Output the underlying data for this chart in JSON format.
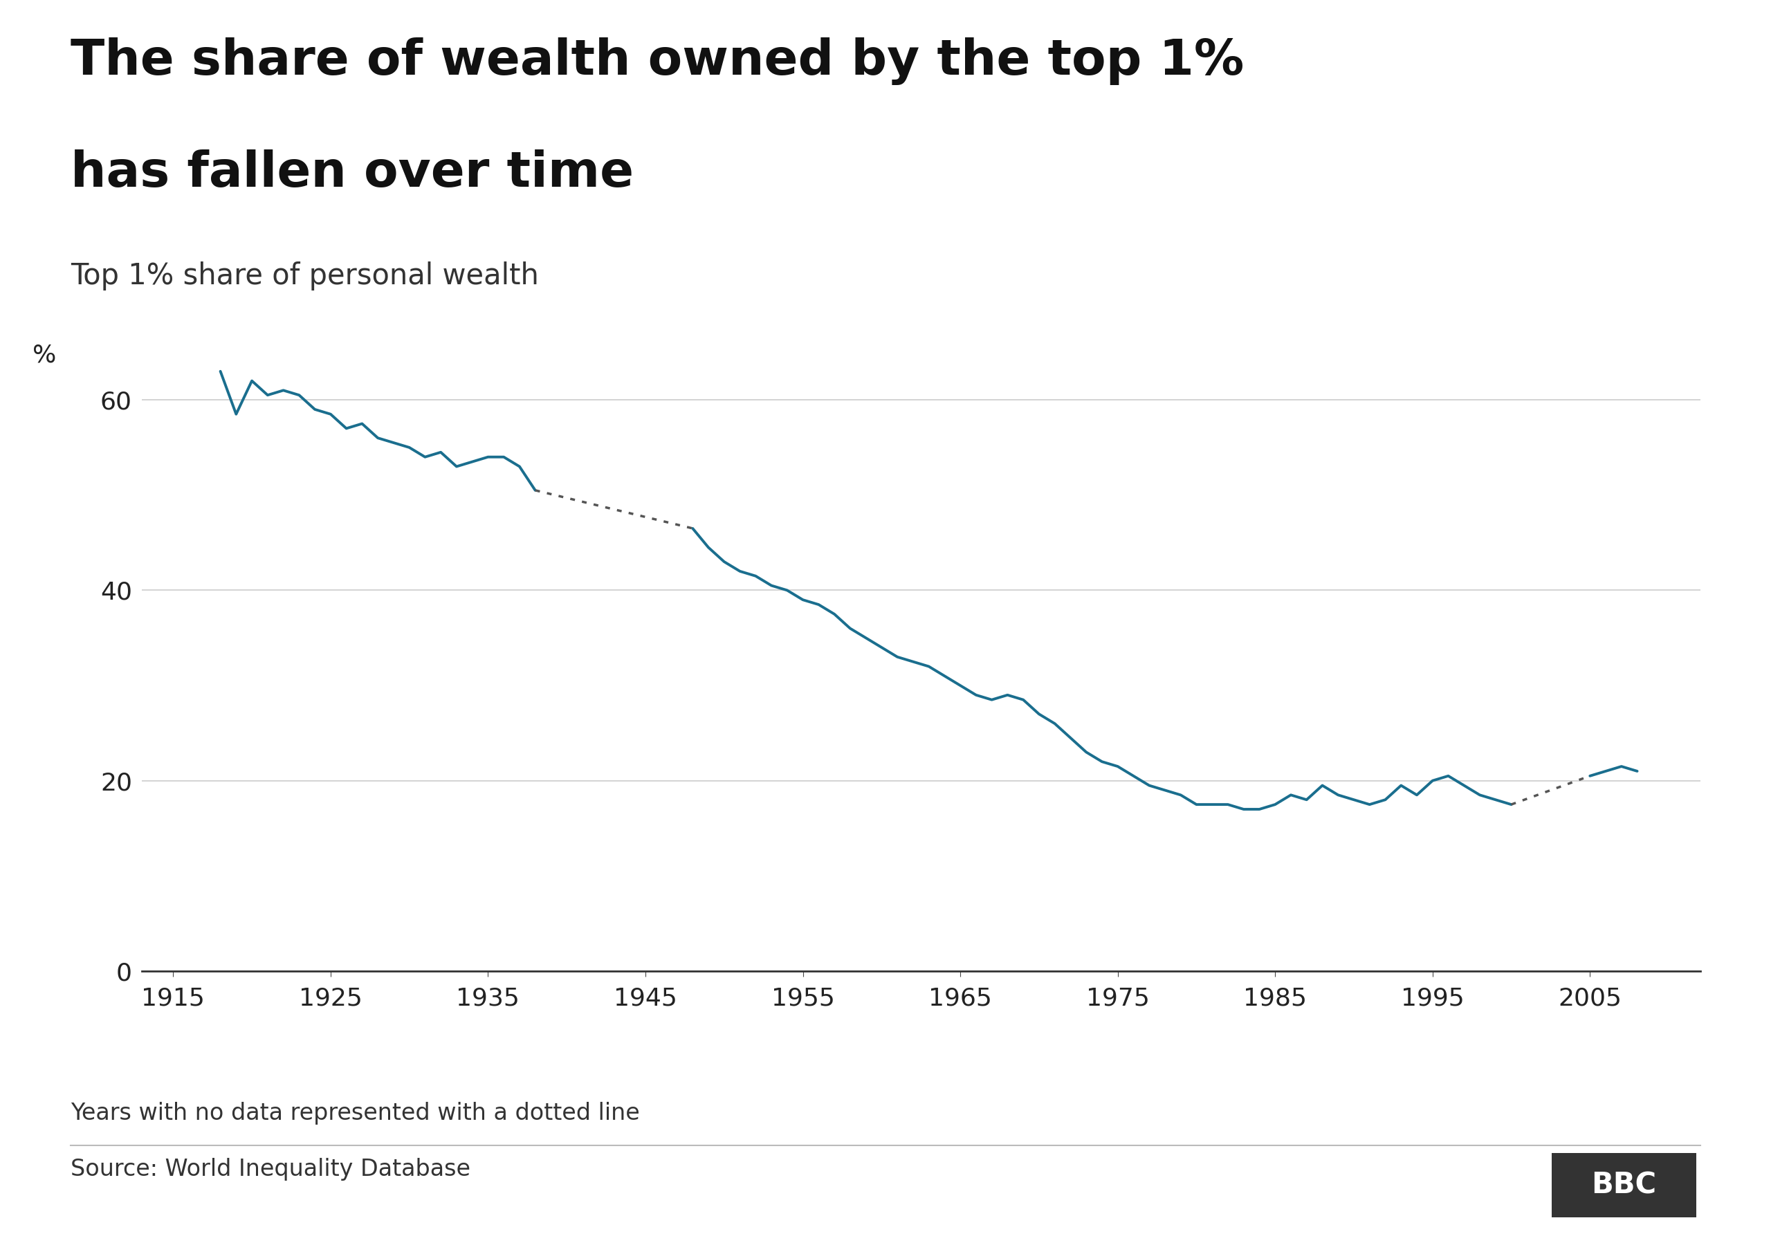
{
  "title_line1": "The share of wealth owned by the top 1%",
  "title_line2": "has fallen over time",
  "subtitle": "Top 1% share of personal wealth",
  "ylabel": "%",
  "source_text": "Source: World Inequality Database",
  "footnote": "Years with no data represented with a dotted line",
  "line_color": "#1a6e8e",
  "dotted_color": "#555555",
  "background_color": "#ffffff",
  "xlim": [
    1913,
    2012
  ],
  "ylim": [
    0,
    68
  ],
  "yticks": [
    0,
    20,
    40,
    60
  ],
  "xticks": [
    1915,
    1925,
    1935,
    1945,
    1955,
    1965,
    1975,
    1985,
    1995,
    2005
  ],
  "solid_segments": [
    {
      "years": [
        1918,
        1919,
        1920,
        1921,
        1922,
        1923,
        1924,
        1925,
        1926,
        1927,
        1928,
        1929,
        1930,
        1931,
        1932,
        1933,
        1934,
        1935,
        1936,
        1937,
        1938
      ],
      "values": [
        63.0,
        58.5,
        62.0,
        60.5,
        61.0,
        60.5,
        59.0,
        58.5,
        57.0,
        57.5,
        56.0,
        55.5,
        55.0,
        54.0,
        54.5,
        53.0,
        53.5,
        54.0,
        54.0,
        53.0,
        50.5
      ]
    },
    {
      "years": [
        1948,
        1949,
        1950,
        1951,
        1952,
        1953,
        1954,
        1955,
        1956,
        1957,
        1958,
        1959,
        1960,
        1961,
        1962,
        1963,
        1964,
        1965,
        1966,
        1967,
        1968,
        1969,
        1970,
        1971,
        1972,
        1973,
        1974,
        1975,
        1976,
        1977,
        1978,
        1979,
        1980,
        1981,
        1982,
        1983,
        1984,
        1985,
        1986,
        1987,
        1988,
        1989,
        1990,
        1991,
        1992,
        1993,
        1994,
        1995,
        1996,
        1997,
        1998,
        1999,
        2000
      ],
      "values": [
        46.5,
        44.5,
        43.0,
        42.0,
        41.5,
        40.5,
        40.0,
        39.0,
        38.5,
        37.5,
        36.0,
        35.0,
        34.0,
        33.0,
        32.5,
        32.0,
        31.0,
        30.0,
        29.0,
        28.5,
        29.0,
        28.5,
        27.0,
        26.0,
        24.5,
        23.0,
        22.0,
        21.5,
        20.5,
        19.5,
        19.0,
        18.5,
        17.5,
        17.5,
        17.5,
        17.0,
        17.0,
        17.5,
        18.5,
        18.0,
        19.5,
        18.5,
        18.0,
        17.5,
        18.0,
        19.5,
        18.5,
        20.0,
        20.5,
        19.5,
        18.5,
        18.0,
        17.5
      ]
    },
    {
      "years": [
        2005,
        2006,
        2007,
        2008
      ],
      "values": [
        20.5,
        21.0,
        21.5,
        21.0
      ]
    }
  ],
  "dotted_segments": [
    {
      "years": [
        1938,
        1948
      ],
      "values": [
        50.5,
        46.5
      ]
    },
    {
      "years": [
        2000,
        2005
      ],
      "values": [
        17.5,
        20.5
      ]
    }
  ]
}
